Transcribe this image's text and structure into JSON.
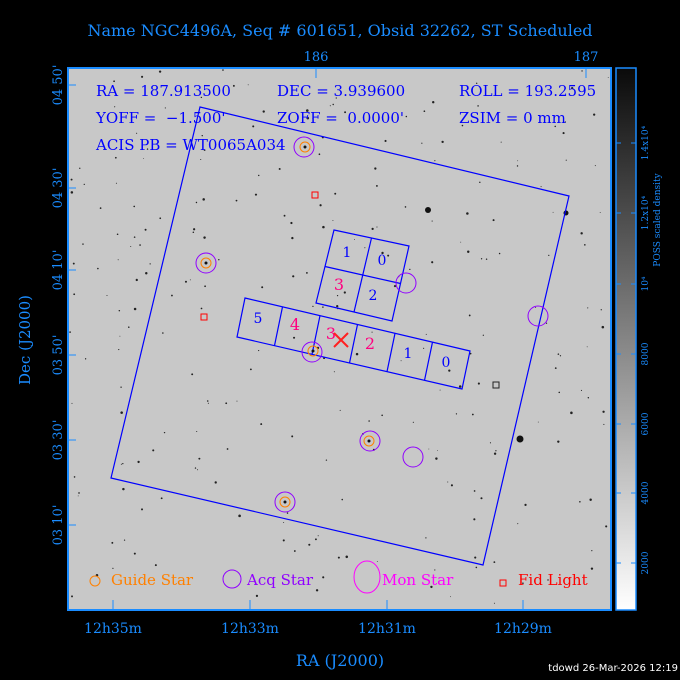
{
  "title": "Name NGC4496A, Seq # 601651, Obsid 32262, ST Scheduled",
  "info": {
    "ra": "RA = 187.913500",
    "dec": "DEC = 3.939600",
    "roll": "ROLL = 193.2595",
    "yoff": "YOFF =  −1.500'",
    "zoff": "ZOFF =  0.0000'",
    "zsim": "ZSIM = 0 mm",
    "acis_pb": "ACIS PB = WT0065A034"
  },
  "top_axis_ticks": [
    "186",
    "187"
  ],
  "left_axis_ticks": [
    "04 50'",
    "04 30'",
    "04 10'",
    "03 50'",
    "03 30'",
    "03 10'"
  ],
  "left_axis_label": "Dec (J2000)",
  "bottom_axis_ticks": [
    "12h35m",
    "12h33m",
    "12h31m",
    "12h29m"
  ],
  "bottom_axis_label": "RA (J2000)",
  "colorbar": {
    "label": "POSS scaled density",
    "ticks": [
      "2000",
      "4000",
      "6000",
      "8000",
      "10⁴",
      "1.2x10⁴",
      "1.4x10⁴"
    ]
  },
  "chips": {
    "acis_i": [
      "1",
      "0",
      "3",
      "2"
    ],
    "acis_s": [
      "5",
      "4",
      "3",
      "2",
      "1",
      "0"
    ]
  },
  "legend": {
    "guide": "Guide Star",
    "acq": "Acq Star",
    "mon": "Mon Star",
    "fid": "Fid Light"
  },
  "colors": {
    "axis": "#1a8cff",
    "fov": "#0000ff",
    "guide": "#ff8000",
    "acq": "#9000ff",
    "mon": "#ff00ff",
    "fid": "#ff0000",
    "chip_highlight": "#ff0080"
  },
  "footer": "tdowd 26-Mar-2026 12:19"
}
